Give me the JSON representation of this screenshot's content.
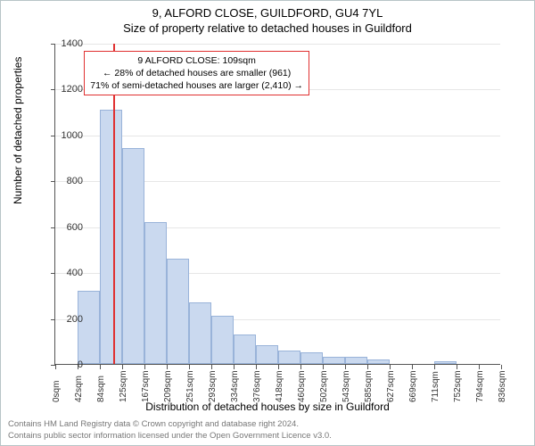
{
  "title_line1": "9, ALFORD CLOSE, GUILDFORD, GU4 7YL",
  "title_line2": "Size of property relative to detached houses in Guildford",
  "ylabel": "Number of detached properties",
  "xlabel": "Distribution of detached houses by size in Guildford",
  "footer_line1": "Contains HM Land Registry data © Crown copyright and database right 2024.",
  "footer_line2": "Contains public sector information licensed under the Open Government Licence v3.0.",
  "chart": {
    "type": "histogram",
    "background_color": "#ffffff",
    "grid_color": "#e6e6e6",
    "axis_color": "#555555",
    "bar_fill": "#cad9ef",
    "bar_stroke": "#99b3d9",
    "marker_color": "#e03030",
    "label_fontsize": 12,
    "tick_fontsize": 11,
    "ylim": [
      0,
      1400
    ],
    "ytick_step": 200,
    "xlim_sqm": [
      0,
      836
    ],
    "xtick_step_sqm": 42,
    "xticks_sqm": [
      0,
      42,
      84,
      125,
      167,
      209,
      251,
      293,
      334,
      376,
      418,
      460,
      502,
      543,
      585,
      627,
      669,
      711,
      752,
      794,
      836
    ],
    "bar_width_sqm": 42,
    "bar_left_sqm": [
      0,
      42,
      84,
      125,
      167,
      209,
      251,
      293,
      334,
      376,
      418,
      460,
      502,
      543,
      585,
      627,
      669,
      711,
      752,
      794
    ],
    "bar_values": [
      0,
      320,
      1110,
      940,
      620,
      460,
      270,
      210,
      130,
      80,
      60,
      50,
      30,
      30,
      20,
      0,
      0,
      10,
      0,
      0
    ],
    "marker_sqm": 109,
    "annotation": {
      "line1": "9 ALFORD CLOSE: 109sqm",
      "line2": "← 28% of detached houses are smaller (961)",
      "line3": "71% of semi-detached houses are larger (2,410) →",
      "left_sqm": 54,
      "top_value": 1370
    }
  }
}
